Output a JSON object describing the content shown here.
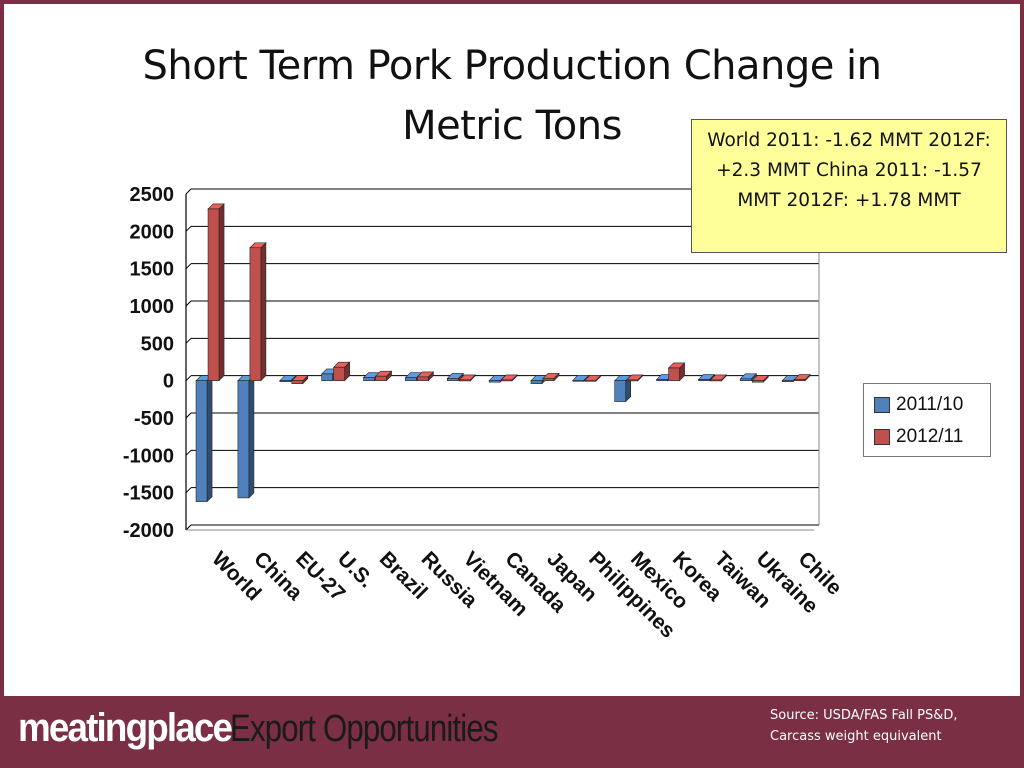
{
  "slide": {
    "title_line1": "Short Term Pork Production Change in",
    "title_line2": "Metric Tons",
    "callout": "World 2011: -1.62 MMT 2012F: +2.3 MMT      China 2011: -1.57 MMT 2012F: +1.78 MMT",
    "source_line1": "Source: USDA/FAS Fall PS&D,",
    "source_line2": "Carcass weight equivalent",
    "logo_text": "meatingplace",
    "logo_tagline": "Export Opportunities"
  },
  "colors": {
    "frame": "#7a2f45",
    "series1": "#4f81bd",
    "series2": "#c0504d",
    "callout_bg": "#ffff99"
  },
  "chart_data": {
    "type": "bar",
    "categories": [
      "World",
      "China",
      "EU-27",
      "U.S.",
      "Brazil",
      "Russia",
      "Vietnam",
      "Canada",
      "Japan",
      "Philippines",
      "Mexico",
      "Korea",
      "Taiwan",
      "Ukraine",
      "Chile"
    ],
    "series": [
      {
        "name": "2011/10",
        "values": [
          -1620,
          -1570,
          -10,
          90,
          40,
          40,
          30,
          -20,
          -40,
          5,
          -280,
          15,
          15,
          25,
          0
        ]
      },
      {
        "name": "2012/11",
        "values": [
          2300,
          1780,
          -40,
          180,
          60,
          50,
          10,
          10,
          30,
          5,
          10,
          170,
          10,
          -20,
          15
        ]
      }
    ],
    "ylim": [
      -2000,
      2500
    ],
    "yticks": [
      2500,
      2000,
      1500,
      1000,
      500,
      0,
      -500,
      -1000,
      -1500,
      -2000
    ],
    "grid": true,
    "legend_position": "right"
  }
}
